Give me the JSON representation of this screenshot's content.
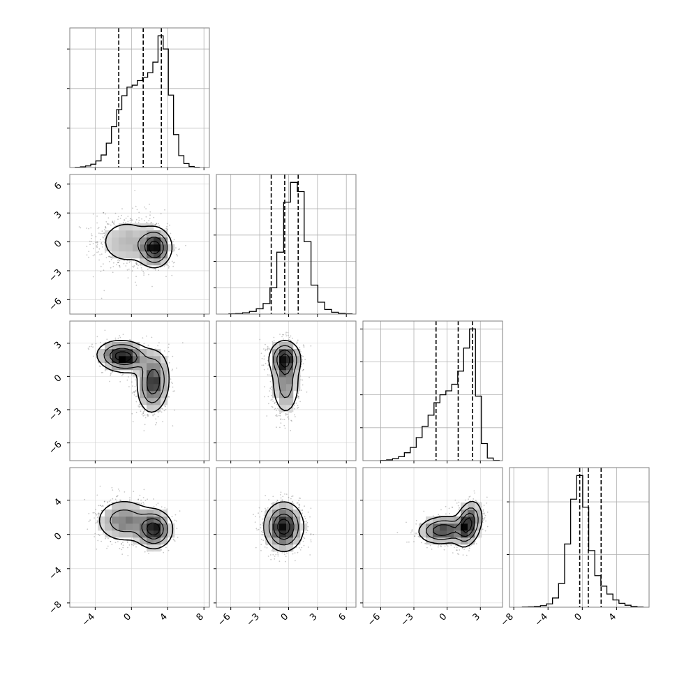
{
  "chart_data": {
    "type": "corner",
    "grid": true,
    "parameters": [
      {
        "range": [
          -6.8,
          8.6
        ],
        "ticks": [
          -4,
          0,
          4,
          8
        ],
        "quantiles": [
          -1.4,
          1.3,
          3.3
        ],
        "hist_range": [
          -6.2,
          7.5
        ],
        "hist_bins": [
          0.002,
          0.005,
          0.012,
          0.025,
          0.05,
          0.095,
          0.185,
          0.31,
          0.44,
          0.545,
          0.61,
          0.625,
          0.66,
          0.685,
          0.72,
          0.8,
          1.0,
          0.9,
          0.55,
          0.25,
          0.09,
          0.03,
          0.008,
          0.002
        ],
        "hist_ticks": [
          0.3,
          0.6,
          0.9
        ]
      },
      {
        "range": [
          -7.5,
          7.0
        ],
        "ticks": [
          -6,
          -3,
          0,
          3,
          6
        ],
        "quantiles": [
          -1.8,
          -0.4,
          1.0
        ],
        "hist_range": [
          -6.2,
          6.6
        ],
        "hist_bins": [
          0.002,
          0.004,
          0.01,
          0.02,
          0.04,
          0.08,
          0.2,
          0.47,
          0.85,
          1.0,
          0.93,
          0.55,
          0.22,
          0.09,
          0.035,
          0.014,
          0.005,
          0.002
        ],
        "hist_ticks": [
          0.2,
          0.4,
          0.6,
          0.8
        ]
      },
      {
        "range": [
          -7.6,
          5.0
        ],
        "ticks": [
          -6,
          -3,
          0,
          3
        ],
        "quantiles": [
          -1.0,
          1.0,
          2.3
        ],
        "hist_range": [
          -6.0,
          4.7
        ],
        "hist_bins": [
          0.002,
          0.006,
          0.015,
          0.03,
          0.06,
          0.1,
          0.175,
          0.26,
          0.345,
          0.44,
          0.5,
          0.53,
          0.58,
          0.68,
          0.855,
          1.0,
          0.49,
          0.13,
          0.02,
          0.002
        ],
        "hist_ticks": [
          0.25,
          0.5,
          0.75,
          1.0
        ]
      },
      {
        "range": [
          -8.5,
          7.8
        ],
        "ticks": [
          -8,
          -4,
          0,
          4
        ],
        "quantiles": [
          -0.3,
          0.7,
          2.2
        ],
        "hist_range": [
          -7.0,
          7.1
        ],
        "hist_bins": [
          0.002,
          0.003,
          0.006,
          0.012,
          0.025,
          0.07,
          0.18,
          0.48,
          0.82,
          1.0,
          0.76,
          0.43,
          0.24,
          0.16,
          0.1,
          0.055,
          0.03,
          0.015,
          0.006,
          0.002
        ],
        "hist_ticks": [
          0.4,
          0.8
        ]
      }
    ],
    "pairs": [
      {
        "row": 1,
        "col": 0,
        "components": [
          {
            "mx": 2.6,
            "my": -0.6,
            "sx": 0.9,
            "sy": 1.0,
            "r": 0.0,
            "w": 0.55
          },
          {
            "mx": -0.5,
            "my": 0.0,
            "sx": 1.8,
            "sy": 1.4,
            "r": 0.0,
            "w": 0.45
          }
        ]
      },
      {
        "row": 2,
        "col": 0,
        "components": [
          {
            "mx": -0.9,
            "my": 1.8,
            "sx": 1.4,
            "sy": 0.7,
            "r": -0.1,
            "w": 0.5
          },
          {
            "mx": 2.4,
            "my": -0.5,
            "sx": 0.9,
            "sy": 1.4,
            "r": 0.1,
            "w": 0.5
          }
        ]
      },
      {
        "row": 2,
        "col": 1,
        "components": [
          {
            "mx": -0.4,
            "my": 1.6,
            "sx": 0.8,
            "sy": 0.8,
            "r": 0.0,
            "w": 0.5
          },
          {
            "mx": -0.3,
            "my": -0.6,
            "sx": 0.75,
            "sy": 1.5,
            "r": 0.0,
            "w": 0.5
          }
        ]
      },
      {
        "row": 3,
        "col": 0,
        "components": [
          {
            "mx": 2.5,
            "my": 0.6,
            "sx": 1.0,
            "sy": 1.1,
            "r": 0.0,
            "w": 0.5
          },
          {
            "mx": -0.8,
            "my": 1.6,
            "sx": 1.6,
            "sy": 1.3,
            "r": 0.0,
            "w": 0.5
          }
        ]
      },
      {
        "row": 3,
        "col": 1,
        "components": [
          {
            "mx": -0.5,
            "my": 0.9,
            "sx": 1.0,
            "sy": 1.4,
            "r": 0.0,
            "w": 1.0
          }
        ]
      },
      {
        "row": 3,
        "col": 2,
        "components": [
          {
            "mx": 1.9,
            "my": 1.2,
            "sx": 0.6,
            "sy": 1.3,
            "r": 0.3,
            "w": 0.5
          },
          {
            "mx": -0.4,
            "my": 0.5,
            "sx": 1.1,
            "sy": 0.8,
            "r": 0.1,
            "w": 0.5
          }
        ]
      }
    ]
  }
}
